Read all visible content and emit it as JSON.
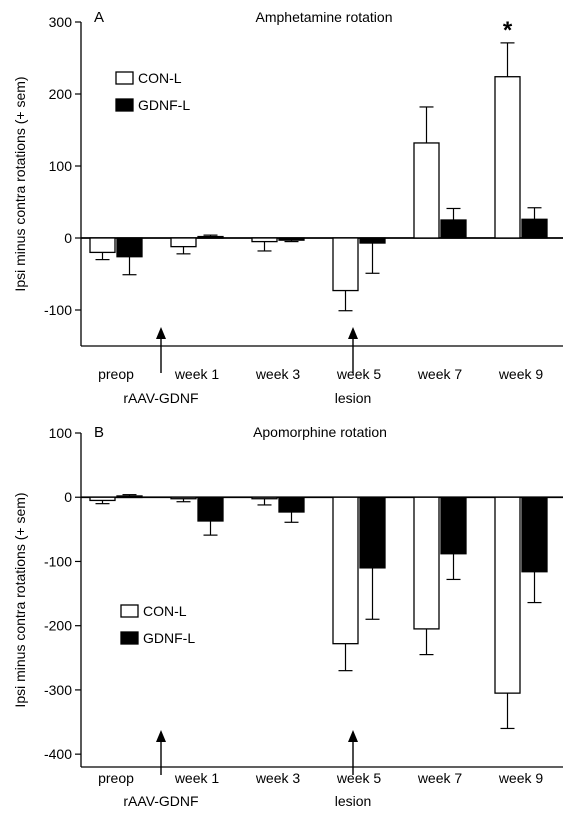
{
  "chart_data": [
    {
      "type": "bar",
      "panel_label": "A",
      "title": "Amphetamine rotation",
      "ylabel": "Ipsi minus contra rotations (+ sem)",
      "xlabel": "",
      "ylim": [
        -150,
        300
      ],
      "yticks": [
        "-100",
        "0",
        "100",
        "200",
        "300"
      ],
      "categories": [
        "preop",
        "week 1",
        "week 3",
        "week 5",
        "week 7",
        "week 9"
      ],
      "series": [
        {
          "name": "CON-L",
          "fill": "#ffffff",
          "values": [
            -20,
            -12,
            -5,
            -73,
            132,
            224
          ],
          "errors": [
            10,
            10,
            13,
            28,
            50,
            47
          ]
        },
        {
          "name": "GDNF-L",
          "fill": "#000000",
          "values": [
            -26,
            2,
            -3,
            -7,
            25,
            26
          ],
          "errors": [
            25,
            2,
            2,
            42,
            16,
            16
          ]
        }
      ],
      "annotations": {
        "significance": {
          "text": "*",
          "category": "week 9",
          "series": "CON-L"
        },
        "events": [
          {
            "label": "rAAV-GDNF",
            "between": [
              "preop",
              "week 1"
            ]
          },
          {
            "label": "lesion",
            "between": [
              "week 3",
              "week 5"
            ]
          }
        ]
      },
      "legend": {
        "placement": "top-left"
      },
      "grid": false
    },
    {
      "type": "bar",
      "panel_label": "B",
      "title": "Apomorphine rotation",
      "ylabel": "Ipsi minus contra rotations (+ sem)",
      "xlabel": "",
      "ylim": [
        -420,
        100
      ],
      "yticks": [
        "-400",
        "-300",
        "-200",
        "-100",
        "0",
        "100"
      ],
      "categories": [
        "preop",
        "week 1",
        "week 3",
        "week 5",
        "week 7",
        "week 9"
      ],
      "series": [
        {
          "name": "CON-L",
          "fill": "#ffffff",
          "values": [
            -5,
            -2,
            -2,
            -228,
            -205,
            -305
          ],
          "errors": [
            5,
            5,
            10,
            42,
            40,
            55
          ]
        },
        {
          "name": "GDNF-L",
          "fill": "#000000",
          "values": [
            2,
            -37,
            -23,
            -110,
            -88,
            -116
          ],
          "errors": [
            2,
            22,
            16,
            80,
            40,
            48
          ]
        }
      ],
      "annotations": {
        "events": [
          {
            "label": "rAAV-GDNF",
            "between": [
              "preop",
              "week 1"
            ]
          },
          {
            "label": "lesion",
            "between": [
              "week 3",
              "week 5"
            ]
          }
        ]
      },
      "legend": {
        "placement": "middle-left"
      },
      "grid": false
    }
  ]
}
